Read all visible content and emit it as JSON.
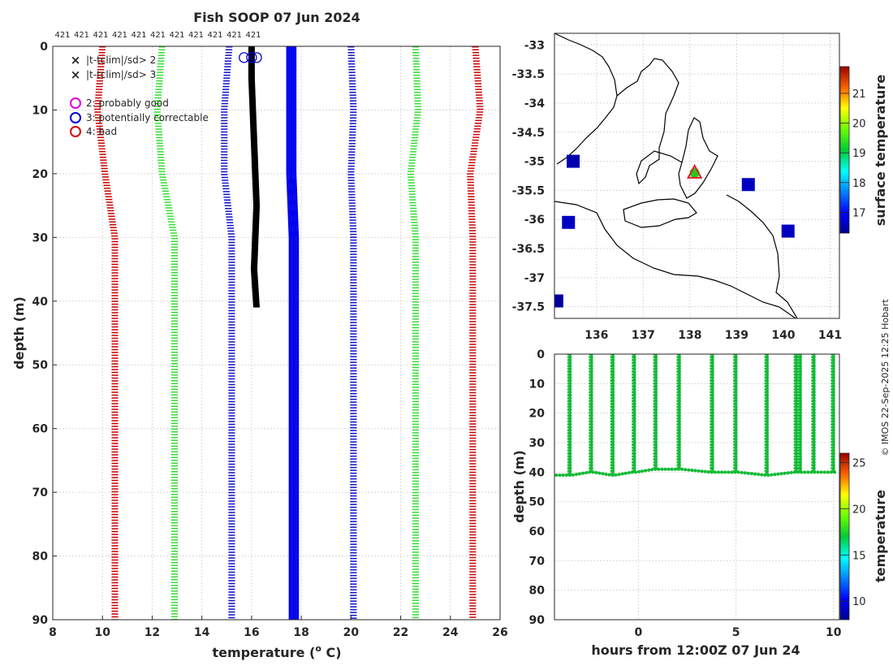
{
  "chart_data": [
    {
      "type": "line",
      "panel": "profiles",
      "title": "Fish SOOP 07 Jun 2024",
      "xlabel_prefix": "temperature (",
      "xlabel_sup": "o",
      "xlabel_suffix": " C)",
      "ylabel": "depth (m)",
      "xlim": [
        8,
        26
      ],
      "ylim": [
        90,
        0
      ],
      "xticks": [
        "8",
        "10",
        "12",
        "14",
        "16",
        "18",
        "20",
        "22",
        "24",
        "26"
      ],
      "yticks": [
        "0",
        "10",
        "20",
        "30",
        "40",
        "50",
        "60",
        "70",
        "80",
        "90"
      ],
      "top_labels": [
        "421",
        "421",
        "421",
        "421",
        "421",
        "421",
        "421",
        "421",
        "421",
        "421",
        "421"
      ],
      "legend": [
        {
          "marker": "x",
          "color": "#22dd22",
          "label": "|t-tclim|/sd> 2"
        },
        {
          "marker": "x",
          "color": "#dd0000",
          "label": "|t-tclim|/sd> 3"
        },
        {
          "marker": "o",
          "color": "#dd00dd",
          "label": "2: probably good"
        },
        {
          "marker": "o",
          "color": "#0000dd",
          "label": "3: potentially correctable"
        },
        {
          "marker": "o",
          "color": "#dd0000",
          "label": "4: bad"
        }
      ],
      "series": [
        {
          "name": "clim -3sd",
          "color": "#cc0000",
          "style": "dotted",
          "depth": [
            0,
            10,
            20,
            30,
            90
          ],
          "temp": [
            10.0,
            9.8,
            10.1,
            10.5,
            10.5
          ]
        },
        {
          "name": "clim -2sd",
          "color": "#33dd33",
          "style": "dotted",
          "depth": [
            0,
            10,
            20,
            30,
            90
          ],
          "temp": [
            12.4,
            12.2,
            12.4,
            12.9,
            12.9
          ]
        },
        {
          "name": "clim -1sd",
          "color": "#1111cc",
          "style": "dotted",
          "depth": [
            0,
            10,
            20,
            30,
            90
          ],
          "temp": [
            15.1,
            14.9,
            14.9,
            15.2,
            15.2
          ]
        },
        {
          "name": "clim mean",
          "color": "#0000ee",
          "style": "solid",
          "depth": [
            0,
            20,
            30,
            90
          ],
          "temp": [
            17.6,
            17.6,
            17.7,
            17.7
          ]
        },
        {
          "name": "clim +1sd",
          "color": "#1111cc",
          "style": "dotted",
          "depth": [
            0,
            10,
            20,
            30,
            90
          ],
          "temp": [
            20.0,
            20.1,
            20.0,
            20.1,
            20.1
          ]
        },
        {
          "name": "clim +2sd",
          "color": "#33dd33",
          "style": "dotted",
          "depth": [
            0,
            10,
            20,
            30,
            90
          ],
          "temp": [
            22.6,
            22.7,
            22.4,
            22.6,
            22.6
          ]
        },
        {
          "name": "clim +3sd",
          "color": "#cc0000",
          "style": "dotted",
          "depth": [
            0,
            10,
            20,
            30,
            90
          ],
          "temp": [
            25.0,
            25.2,
            24.8,
            24.9,
            24.9
          ]
        },
        {
          "name": "observed profiles",
          "color": "#000000",
          "style": "solid",
          "depth": [
            0,
            5,
            15,
            25,
            35,
            41
          ],
          "temp": [
            16.0,
            16.0,
            16.1,
            16.2,
            16.1,
            16.2
          ]
        }
      ],
      "flag_markers": {
        "depth": 1,
        "temp": [
          15.7,
          16.0,
          16.2
        ]
      }
    },
    {
      "type": "scatter",
      "panel": "map",
      "xlim": [
        135.1,
        141.2
      ],
      "ylim": [
        -37.7,
        -32.8
      ],
      "xticks": [
        "136",
        "137",
        "138",
        "139",
        "140",
        "141"
      ],
      "yticks": [
        "-33",
        "-33.5",
        "-34",
        "-34.5",
        "-35",
        "-35.5",
        "-36",
        "-36.5",
        "-37",
        "-37.5"
      ],
      "colorbar": {
        "label": "surface temperature",
        "range": [
          16.3,
          21.9
        ],
        "ticks": [
          "17",
          "18",
          "19",
          "20",
          "21"
        ]
      },
      "points": [
        {
          "lon": 138.1,
          "lat": -35.2
        }
      ],
      "blobs": [
        {
          "lon": 135.5,
          "lat": -35.0,
          "value": 16.5
        },
        {
          "lon": 135.4,
          "lat": -36.05,
          "value": 16.6
        },
        {
          "lon": 135.15,
          "lat": -37.4,
          "value": 16.4
        },
        {
          "lon": 139.25,
          "lat": -35.4,
          "value": 16.6
        },
        {
          "lon": 140.1,
          "lat": -36.2,
          "value": 16.6
        }
      ]
    },
    {
      "type": "scatter",
      "panel": "timeseries",
      "xlabel": "hours from 12:00Z 07 Jun 24",
      "ylabel": "depth (m)",
      "xlim": [
        -4.3,
        10.3
      ],
      "ylim": [
        90,
        0
      ],
      "xticks": [
        "0",
        "5",
        "10"
      ],
      "yticks": [
        "0",
        "10",
        "20",
        "30",
        "40",
        "50",
        "60",
        "70",
        "80",
        "90"
      ],
      "colorbar": {
        "label": "temperature",
        "range": [
          8,
          26
        ],
        "ticks": [
          "10",
          "15",
          "20",
          "25"
        ]
      },
      "casts_hours": [
        -3.5,
        -2.4,
        -1.3,
        -0.2,
        0.9,
        2.1,
        3.8,
        5.0,
        6.6,
        8.1,
        8.3,
        9.0,
        10.0
      ],
      "bottom_depth": [
        41,
        40,
        41,
        40,
        39,
        39,
        40,
        40,
        41,
        40,
        40,
        40,
        40
      ]
    }
  ],
  "watermark": "© IMOS 22-Sep-2025 12:25 Hobart"
}
